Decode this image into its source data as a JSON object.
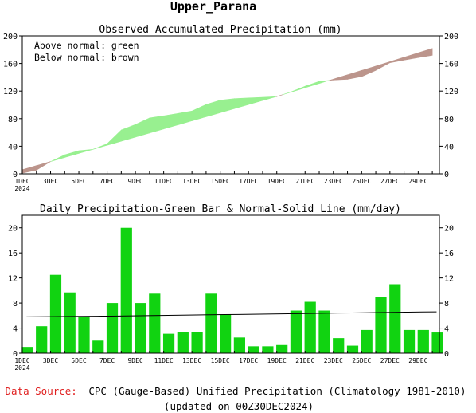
{
  "title": "Upper_Parana",
  "chart_data": [
    {
      "type": "area",
      "title": "Observed Accumulated Precipitation (mm)",
      "legend": [
        "Above normal: green",
        "Below normal: brown"
      ],
      "legend_position": "top-left",
      "colors": {
        "above": "#98f090",
        "below": "#bc958c"
      },
      "x_tick_labels": [
        "1DEC",
        "3DEC",
        "5DEC",
        "7DEC",
        "9DEC",
        "11DEC",
        "13DEC",
        "15DEC",
        "17DEC",
        "19DEC",
        "21DEC",
        "23DEC",
        "25DEC",
        "27DEC",
        "29DEC"
      ],
      "x_year_label": "2024",
      "ylim": [
        0,
        200
      ],
      "y_ticks": [
        0,
        40,
        80,
        120,
        160,
        200
      ],
      "days": [
        1,
        2,
        3,
        4,
        5,
        6,
        7,
        8,
        9,
        10,
        11,
        12,
        13,
        14,
        15,
        16,
        17,
        18,
        19,
        20,
        21,
        22,
        23,
        24,
        25,
        26,
        27,
        28,
        29,
        30
      ],
      "observed": [
        1.0,
        5.3,
        17.8,
        27.5,
        33.5,
        35.5,
        43.5,
        63.5,
        71.5,
        81.0,
        84.1,
        87.5,
        91.0,
        100.5,
        106.7,
        109.0,
        110.0,
        110.9,
        112.0,
        118.7,
        127.0,
        134.0,
        136.0,
        137.0,
        141.0,
        150.0,
        161.0,
        164.9,
        168.5,
        171.8
      ],
      "normal": [
        6.0,
        11.9,
        17.8,
        23.7,
        29.6,
        35.5,
        41.4,
        47.3,
        53.2,
        59.1,
        65.0,
        70.9,
        76.8,
        82.7,
        88.6,
        94.5,
        100.4,
        106.3,
        112.2,
        118.4,
        124.7,
        131.0,
        137.3,
        143.6,
        149.9,
        156.2,
        162.6,
        169.0,
        175.4,
        181.8
      ]
    },
    {
      "type": "bar",
      "title": "Daily Precipitation-Green Bar & Normal-Solid Line (mm/day)",
      "colors": {
        "bar": "#11d311",
        "line": "#000000"
      },
      "x_tick_labels": [
        "1DEC",
        "3DEC",
        "5DEC",
        "7DEC",
        "9DEC",
        "11DEC",
        "13DEC",
        "15DEC",
        "17DEC",
        "19DEC",
        "21DEC",
        "23DEC",
        "25DEC",
        "27DEC",
        "29DEC"
      ],
      "x_year_label": "2024",
      "ylim": [
        0,
        22
      ],
      "y_ticks": [
        0,
        4,
        8,
        12,
        16,
        20
      ],
      "days": [
        1,
        2,
        3,
        4,
        5,
        6,
        7,
        8,
        9,
        10,
        11,
        12,
        13,
        14,
        15,
        16,
        17,
        18,
        19,
        20,
        21,
        22,
        23,
        24,
        25,
        26,
        27,
        28,
        29,
        30
      ],
      "values": [
        1.0,
        4.3,
        12.5,
        9.7,
        5.9,
        2.0,
        8.0,
        20.0,
        8.0,
        9.5,
        3.1,
        3.4,
        3.4,
        9.5,
        6.2,
        2.5,
        1.1,
        1.1,
        1.3,
        6.8,
        8.2,
        6.8,
        2.4,
        1.2,
        3.7,
        9.0,
        11.0,
        3.7,
        3.7,
        3.3
      ],
      "normal": [
        5.8,
        5.82,
        5.84,
        5.86,
        5.88,
        5.9,
        5.92,
        5.95,
        5.98,
        6.01,
        6.04,
        6.07,
        6.1,
        6.13,
        6.16,
        6.19,
        6.22,
        6.25,
        6.28,
        6.31,
        6.34,
        6.37,
        6.4,
        6.43,
        6.46,
        6.49,
        6.52,
        6.55,
        6.58,
        6.6
      ]
    }
  ],
  "footer": {
    "source_label": "Data Source:",
    "source_text": "CPC (Gauge-Based) Unified Precipitation (Climatology 1981-2010)",
    "updated": "(updated on 00Z30DEC2024)"
  }
}
